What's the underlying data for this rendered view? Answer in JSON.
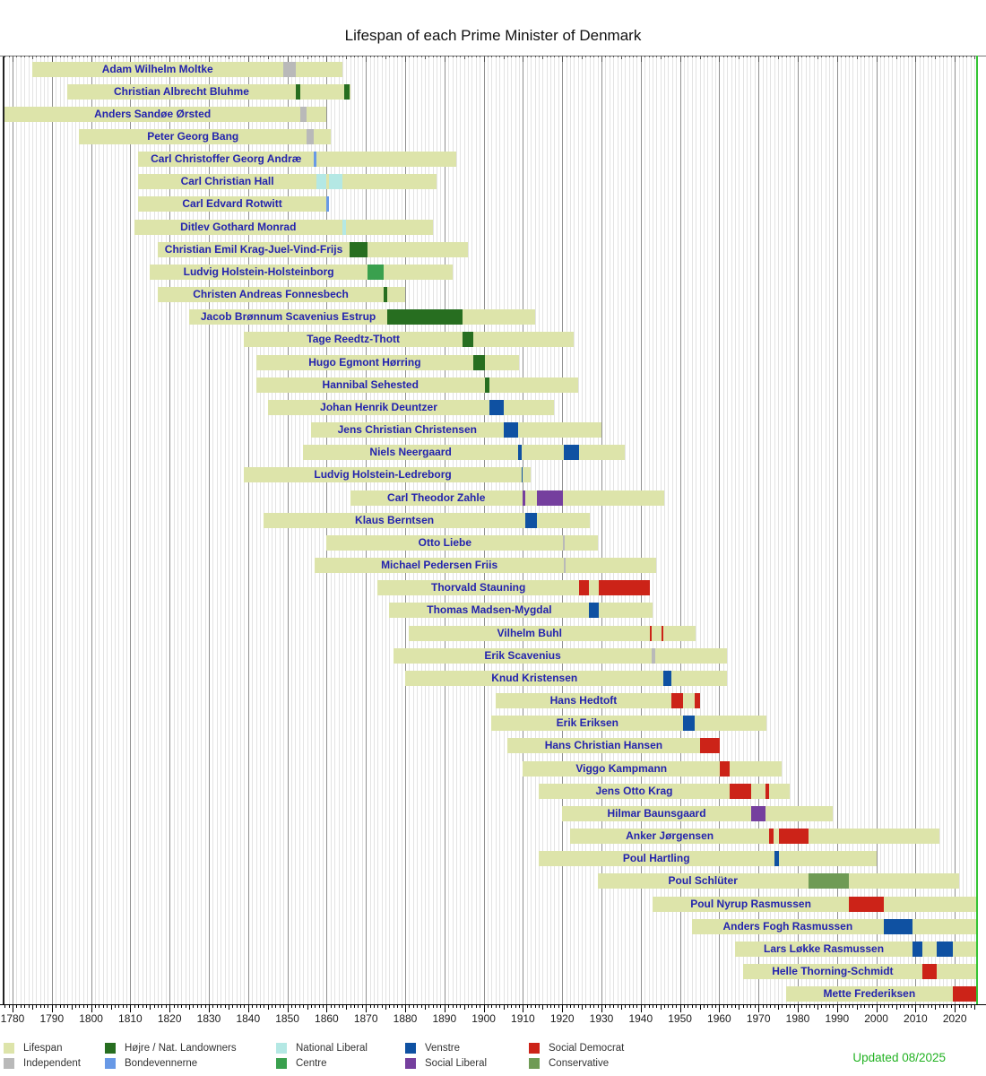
{
  "chart_data": {
    "type": "bar",
    "subtype": "lifespan-timeline-gantt",
    "title": "Lifespan of each Prime Minister of Denmark",
    "updated": "Updated 08/2025",
    "x_axis": {
      "range": [
        1776,
        2025.6
      ],
      "label_years": [
        1780,
        1790,
        1800,
        1810,
        1820,
        1830,
        1840,
        1850,
        1860,
        1870,
        1880,
        1890,
        1900,
        1910,
        1920,
        1930,
        1940,
        1950,
        1960,
        1970,
        1980,
        1990,
        2000,
        2010,
        2020
      ],
      "gridlines": "yearly",
      "now_year": 2025.6
    },
    "colors": {
      "background": "#ffffff",
      "grid_year": "#e3e3e3",
      "grid_decade": "#909090",
      "axis": "#222222",
      "name_text": "#2323ae",
      "now_line": "#33c433",
      "updated_text": "#22b222",
      "title_text": "#111111"
    },
    "parties": {
      "lifespan": {
        "label": "Lifespan",
        "color": "#dde4aa"
      },
      "independent": {
        "label": "Independent",
        "color": "#b9b9b9"
      },
      "hojre": {
        "label": "Højre / Nat. Landowners",
        "color": "#276e20"
      },
      "bondevennerne": {
        "label": "Bondevennerne",
        "color": "#6899e6"
      },
      "national_liberal": {
        "label": "National Liberal",
        "color": "#b4e8e4"
      },
      "centre": {
        "label": "Centre",
        "color": "#3aa04e"
      },
      "venstre": {
        "label": "Venstre",
        "color": "#0f51a2"
      },
      "social_liberal": {
        "label": "Social Liberal",
        "color": "#753f9e"
      },
      "social_democrat": {
        "label": "Social Democrat",
        "color": "#cc2318"
      },
      "conservative": {
        "label": "Conservative",
        "color": "#6f9b55"
      }
    },
    "legend": {
      "rows": [
        [
          "lifespan",
          "hojre",
          "national_liberal",
          "venstre",
          "social_democrat"
        ],
        [
          "independent",
          "bondevennerne",
          "centre",
          "social_liberal",
          "conservative"
        ]
      ]
    },
    "prime_ministers": [
      {
        "name": "Adam Wilhelm Moltke",
        "birth": 1785,
        "death": 1864,
        "terms": [
          {
            "start": 1848.85,
            "end": 1852.05,
            "party": "independent"
          }
        ]
      },
      {
        "name": "Christian Albrecht Bluhme",
        "birth": 1794,
        "death": 1866,
        "terms": [
          {
            "start": 1852.05,
            "end": 1853.3,
            "party": "hojre"
          },
          {
            "start": 1864.55,
            "end": 1865.85,
            "party": "hojre"
          }
        ]
      },
      {
        "name": "Anders Sandøe Ørsted",
        "birth": 1778,
        "death": 1860,
        "terms": [
          {
            "start": 1853.3,
            "end": 1854.9,
            "party": "independent"
          }
        ]
      },
      {
        "name": "Peter Georg Bang",
        "birth": 1797,
        "death": 1861,
        "terms": [
          {
            "start": 1854.9,
            "end": 1856.8,
            "party": "independent"
          }
        ]
      },
      {
        "name": "Carl Christoffer Georg Andræ",
        "birth": 1812,
        "death": 1893,
        "terms": [
          {
            "start": 1856.8,
            "end": 1857.4,
            "party": "bondevennerne"
          }
        ]
      },
      {
        "name": "Carl Christian Hall",
        "birth": 1812,
        "death": 1888,
        "terms": [
          {
            "start": 1857.4,
            "end": 1859.9,
            "party": "national_liberal"
          },
          {
            "start": 1860.5,
            "end": 1863.95,
            "party": "national_liberal"
          }
        ]
      },
      {
        "name": "Carl Edvard Rotwitt",
        "birth": 1812,
        "death": 1860,
        "terms": [
          {
            "start": 1859.9,
            "end": 1860.6,
            "party": "bondevennerne"
          }
        ]
      },
      {
        "name": "Ditlev Gothard Monrad",
        "birth": 1811,
        "death": 1887,
        "terms": [
          {
            "start": 1863.95,
            "end": 1864.85,
            "party": "national_liberal"
          }
        ]
      },
      {
        "name": "Christian Emil Krag-Juel-Vind-Frijs",
        "birth": 1817,
        "death": 1896,
        "terms": [
          {
            "start": 1865.85,
            "end": 1870.4,
            "party": "hojre"
          }
        ]
      },
      {
        "name": "Ludvig Holstein-Holsteinborg",
        "birth": 1815,
        "death": 1892,
        "terms": [
          {
            "start": 1870.4,
            "end": 1874.5,
            "party": "centre"
          }
        ]
      },
      {
        "name": "Christen Andreas Fonnesbech",
        "birth": 1817,
        "death": 1880,
        "terms": [
          {
            "start": 1874.5,
            "end": 1875.45,
            "party": "hojre"
          }
        ]
      },
      {
        "name": "Jacob Brønnum Scavenius Estrup",
        "birth": 1825,
        "death": 1913,
        "terms": [
          {
            "start": 1875.45,
            "end": 1894.6,
            "party": "hojre"
          }
        ]
      },
      {
        "name": "Tage Reedtz-Thott",
        "birth": 1839,
        "death": 1923,
        "terms": [
          {
            "start": 1894.6,
            "end": 1897.4,
            "party": "hojre"
          }
        ]
      },
      {
        "name": "Hugo Egmont Hørring",
        "birth": 1842,
        "death": 1909,
        "terms": [
          {
            "start": 1897.4,
            "end": 1900.3,
            "party": "hojre"
          }
        ]
      },
      {
        "name": "Hannibal Sehested",
        "birth": 1842,
        "death": 1924,
        "terms": [
          {
            "start": 1900.3,
            "end": 1901.55,
            "party": "hojre"
          }
        ]
      },
      {
        "name": "Johan Henrik Deuntzer",
        "birth": 1845,
        "death": 1918,
        "terms": [
          {
            "start": 1901.55,
            "end": 1905.05,
            "party": "venstre"
          }
        ]
      },
      {
        "name": "Jens Christian Christensen",
        "birth": 1856,
        "death": 1930,
        "terms": [
          {
            "start": 1905.05,
            "end": 1908.8,
            "party": "venstre"
          }
        ]
      },
      {
        "name": "Niels Neergaard",
        "birth": 1854,
        "death": 1936,
        "terms": [
          {
            "start": 1908.8,
            "end": 1909.6,
            "party": "venstre"
          },
          {
            "start": 1920.35,
            "end": 1924.3,
            "party": "venstre"
          }
        ]
      },
      {
        "name": "Ludvig Holstein-Ledreborg",
        "birth": 1839,
        "death": 1912,
        "terms": [
          {
            "start": 1909.6,
            "end": 1909.85,
            "party": "venstre"
          }
        ]
      },
      {
        "name": "Carl Theodor Zahle",
        "birth": 1866,
        "death": 1946,
        "terms": [
          {
            "start": 1909.85,
            "end": 1910.55,
            "party": "social_liberal"
          },
          {
            "start": 1913.5,
            "end": 1920.25,
            "party": "social_liberal"
          }
        ]
      },
      {
        "name": "Klaus Berntsen",
        "birth": 1844,
        "death": 1927,
        "terms": [
          {
            "start": 1910.55,
            "end": 1913.5,
            "party": "venstre"
          }
        ]
      },
      {
        "name": "Otto Liebe",
        "birth": 1860,
        "death": 1929,
        "terms": [
          {
            "start": 1920.25,
            "end": 1920.4,
            "party": "independent"
          }
        ]
      },
      {
        "name": "Michael Pedersen Friis",
        "birth": 1857,
        "death": 1944,
        "terms": [
          {
            "start": 1920.4,
            "end": 1920.55,
            "party": "independent"
          }
        ]
      },
      {
        "name": "Thorvald Stauning",
        "birth": 1873,
        "death": 1942,
        "terms": [
          {
            "start": 1924.3,
            "end": 1926.9,
            "party": "social_democrat"
          },
          {
            "start": 1929.3,
            "end": 1942.35,
            "party": "social_democrat"
          }
        ]
      },
      {
        "name": "Thomas Madsen-Mygdal",
        "birth": 1876,
        "death": 1943,
        "terms": [
          {
            "start": 1926.9,
            "end": 1929.3,
            "party": "venstre"
          }
        ]
      },
      {
        "name": "Vilhelm Buhl",
        "birth": 1881,
        "death": 1954,
        "terms": [
          {
            "start": 1942.35,
            "end": 1942.85,
            "party": "social_democrat"
          },
          {
            "start": 1945.35,
            "end": 1945.85,
            "party": "social_democrat"
          }
        ]
      },
      {
        "name": "Erik Scavenius",
        "birth": 1877,
        "death": 1962,
        "terms": [
          {
            "start": 1942.85,
            "end": 1943.65,
            "party": "independent"
          }
        ]
      },
      {
        "name": "Knud Kristensen",
        "birth": 1880,
        "death": 1962,
        "terms": [
          {
            "start": 1945.85,
            "end": 1947.85,
            "party": "venstre"
          }
        ]
      },
      {
        "name": "Hans Hedtoft",
        "birth": 1903,
        "death": 1955,
        "terms": [
          {
            "start": 1947.85,
            "end": 1950.85,
            "party": "social_democrat"
          },
          {
            "start": 1953.75,
            "end": 1955.1,
            "party": "social_democrat"
          }
        ]
      },
      {
        "name": "Erik Eriksen",
        "birth": 1902,
        "death": 1972,
        "terms": [
          {
            "start": 1950.85,
            "end": 1953.75,
            "party": "venstre"
          }
        ]
      },
      {
        "name": "Hans Christian Hansen",
        "birth": 1906,
        "death": 1960,
        "terms": [
          {
            "start": 1955.1,
            "end": 1960.15,
            "party": "social_democrat"
          }
        ]
      },
      {
        "name": "Viggo Kampmann",
        "birth": 1910,
        "death": 1976,
        "terms": [
          {
            "start": 1960.15,
            "end": 1962.65,
            "party": "social_democrat"
          }
        ]
      },
      {
        "name": "Jens Otto Krag",
        "birth": 1914,
        "death": 1978,
        "terms": [
          {
            "start": 1962.65,
            "end": 1968.1,
            "party": "social_democrat"
          },
          {
            "start": 1971.75,
            "end": 1972.75,
            "party": "social_democrat"
          }
        ]
      },
      {
        "name": "Hilmar Baunsgaard",
        "birth": 1920,
        "death": 1989,
        "terms": [
          {
            "start": 1968.1,
            "end": 1971.75,
            "party": "social_liberal"
          }
        ]
      },
      {
        "name": "Anker Jørgensen",
        "birth": 1922,
        "death": 2016,
        "terms": [
          {
            "start": 1972.75,
            "end": 1973.95,
            "party": "social_democrat"
          },
          {
            "start": 1975.1,
            "end": 1982.7,
            "party": "social_democrat"
          }
        ]
      },
      {
        "name": "Poul Hartling",
        "birth": 1914,
        "death": 2000,
        "terms": [
          {
            "start": 1973.95,
            "end": 1975.1,
            "party": "venstre"
          }
        ]
      },
      {
        "name": "Poul Schlüter",
        "birth": 1929,
        "death": 2021,
        "terms": [
          {
            "start": 1982.7,
            "end": 1993.05,
            "party": "conservative"
          }
        ]
      },
      {
        "name": "Poul Nyrup Rasmussen",
        "birth": 1943,
        "death": null,
        "terms": [
          {
            "start": 1993.05,
            "end": 2001.9,
            "party": "social_democrat"
          }
        ]
      },
      {
        "name": "Anders Fogh Rasmussen",
        "birth": 1953,
        "death": null,
        "terms": [
          {
            "start": 2001.9,
            "end": 2009.25,
            "party": "venstre"
          }
        ]
      },
      {
        "name": "Lars Løkke Rasmussen",
        "birth": 1964,
        "death": null,
        "terms": [
          {
            "start": 2009.25,
            "end": 2011.75,
            "party": "venstre"
          },
          {
            "start": 2015.45,
            "end": 2019.45,
            "party": "venstre"
          }
        ]
      },
      {
        "name": "Helle Thorning-Schmidt",
        "birth": 1966,
        "death": null,
        "terms": [
          {
            "start": 2011.75,
            "end": 2015.45,
            "party": "social_democrat"
          }
        ]
      },
      {
        "name": "Mette Frederiksen",
        "birth": 1977,
        "death": null,
        "terms": [
          {
            "start": 2019.45,
            "end": 2025.6,
            "party": "social_democrat"
          }
        ]
      }
    ]
  }
}
